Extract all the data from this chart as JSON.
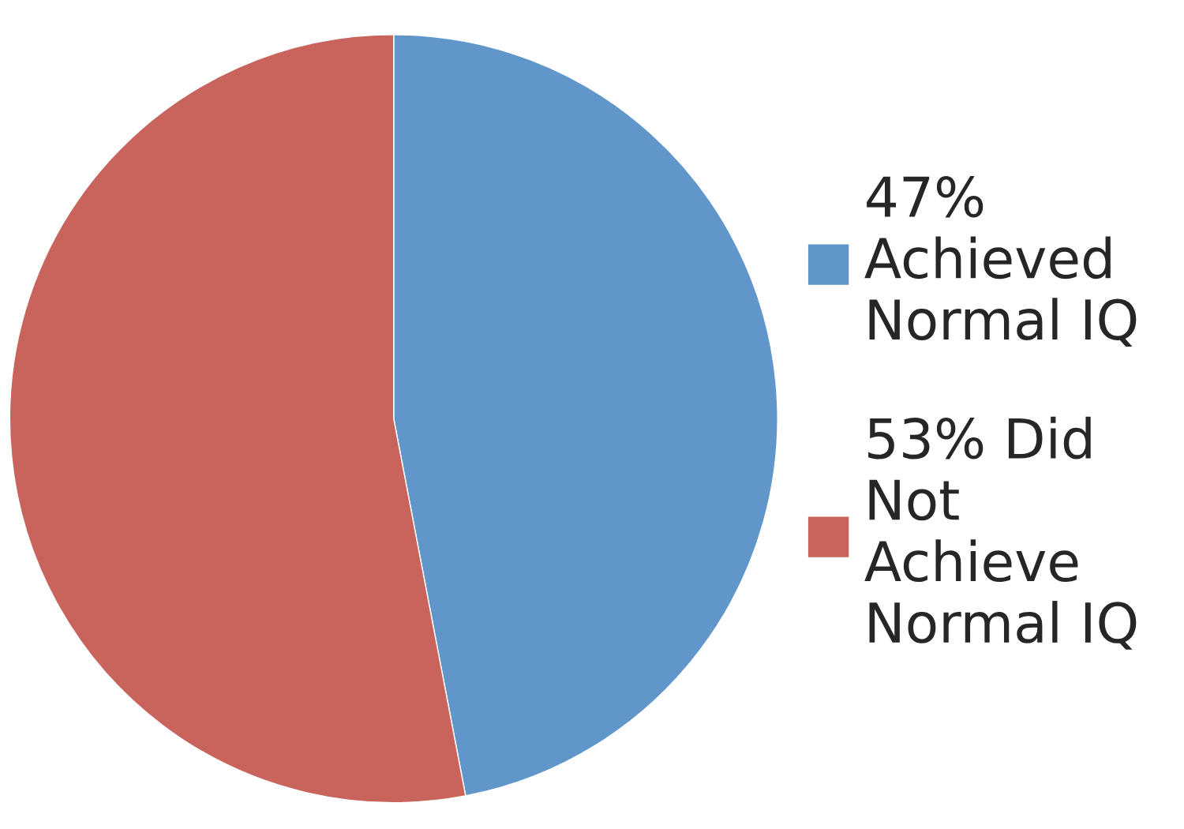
{
  "chart_data": {
    "type": "pie",
    "categories": [
      "47% Achieved Normal IQ",
      "53% Did Not Achieve Normal IQ"
    ],
    "values": [
      47,
      53
    ],
    "colors": [
      "#6096c9",
      "#c9645c"
    ],
    "legend": "right"
  }
}
